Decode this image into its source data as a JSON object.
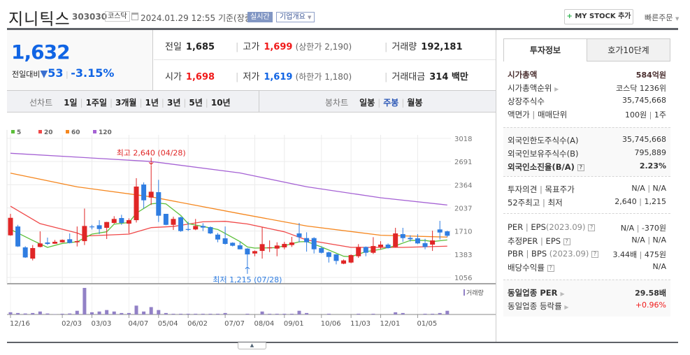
{
  "header": {
    "name": "지니틱스",
    "code": "303030",
    "market": "코스닥",
    "datetime": "2024.01.29 12:55",
    "basis": "기준(장중)",
    "realtime": "실시간",
    "corp_overview": "기업개요",
    "mystock": "MY STOCK 추가",
    "quick_order": "빠른주문"
  },
  "price": {
    "current": "1,632",
    "change_label": "전일대비",
    "change": "53",
    "change_pct": "-3.15%",
    "direction": "down",
    "prev_label": "전일",
    "prev": "1,685",
    "high_label": "고가",
    "high": "1,699",
    "upper_limit": "(상한가 2,190)",
    "volume_label": "거래량",
    "volume": "192,181",
    "open_label": "시가",
    "open": "1,698",
    "low_label": "저가",
    "low": "1,619",
    "lower_limit": "(하한가 1,180)",
    "amount_label": "거래대금",
    "amount": "314 백만"
  },
  "chart_tabs": {
    "line_label": "선차트",
    "line": [
      "1일",
      "1주일",
      "3개월",
      "1년",
      "3년",
      "5년",
      "10년"
    ],
    "candle_label": "봉차트",
    "candle": [
      "일봉",
      "주봉",
      "월봉"
    ],
    "candle_active": "주봉"
  },
  "right": {
    "tabs": [
      "투자정보",
      "호가10단계"
    ],
    "active_tab": "투자정보",
    "market_cap_label": "시가총액",
    "market_cap": "584억원",
    "rank_label": "시가총액순위",
    "rank": "코스닥 1236위",
    "shares_label": "상장주식수",
    "shares": "35,745,668",
    "par_label": "액면가",
    "unit_label": "매매단위",
    "par": "100원",
    "unit": "1주",
    "foreign_limit_label": "외국인한도주식수(A)",
    "foreign_limit": "35,745,668",
    "foreign_hold_label": "외국인보유주식수(B)",
    "foreign_hold": "795,889",
    "foreign_ratio_label": "외국인소진율(B/A)",
    "foreign_ratio": "2.23%",
    "opinion_label": "투자의견",
    "target_label": "목표주가",
    "opinion": "N/A",
    "target": "N/A",
    "w52_high_label": "52주최고",
    "w52_low_label": "최저",
    "w52_high": "2,640",
    "w52_low": "1,215",
    "per_label": "PER",
    "eps_label": "EPS",
    "eps_period": "(2023.09)",
    "per": "N/A",
    "eps": "-370원",
    "est_per_label": "추정PER",
    "est_eps_label": "EPS",
    "est_per": "N/A",
    "est_eps": "N/A",
    "pbr_label": "PBR",
    "bps_label": "BPS",
    "bps_period": "(2023.09)",
    "pbr": "3.44배",
    "bps": "475원",
    "div_label": "배당수익률",
    "div": "N/A",
    "ind_per_label": "동일업종 PER",
    "ind_per": "29.58배",
    "ind_chg_label": "동일업종 등락률",
    "ind_chg": "+0.96%"
  },
  "chart_data": {
    "type": "candlestick",
    "period": "weekly",
    "y_ticks": [
      3018,
      2691,
      2364,
      2037,
      1710,
      1383,
      1056
    ],
    "ylim": [
      1056,
      3018
    ],
    "x_ticks": [
      {
        "i": 0,
        "label": "12/16"
      },
      {
        "i": 7,
        "label": "02/03"
      },
      {
        "i": 11,
        "label": "03/03"
      },
      {
        "i": 16,
        "label": "04/07"
      },
      {
        "i": 20,
        "label": "05/04"
      },
      {
        "i": 24,
        "label": "06/02"
      },
      {
        "i": 29,
        "label": "07/07"
      },
      {
        "i": 33,
        "label": "08/04"
      },
      {
        "i": 37,
        "label": "09/01"
      },
      {
        "i": 42,
        "label": "10/06"
      },
      {
        "i": 46,
        "label": "11/03"
      },
      {
        "i": 50,
        "label": "12/01"
      },
      {
        "i": 55,
        "label": "01/05"
      }
    ],
    "legend": [
      {
        "name": "5",
        "color": "#5cbf3a"
      },
      {
        "name": "20",
        "color": "#f04848"
      },
      {
        "name": "60",
        "color": "#f5871f"
      },
      {
        "name": "120",
        "color": "#a562d4"
      }
    ],
    "up_color": "#e02626",
    "down_color": "#2f7de1",
    "ohlc": [
      [
        1650,
        1953,
        1644,
        1897
      ],
      [
        1775,
        1798,
        1486,
        1493
      ],
      [
        1480,
        1496,
        1332,
        1338
      ],
      [
        1322,
        1513,
        1296,
        1470
      ],
      [
        1486,
        1706,
        1480,
        1536
      ],
      [
        1549,
        1618,
        1513,
        1529
      ],
      [
        1532,
        1585,
        1529,
        1559
      ],
      [
        1552,
        1592,
        1549,
        1585
      ],
      [
        1595,
        1677,
        1536,
        1542
      ],
      [
        1552,
        1775,
        1493,
        1568
      ],
      [
        1568,
        2028,
        1513,
        1782
      ],
      [
        1775,
        1798,
        1733,
        1769
      ],
      [
        1792,
        1864,
        1667,
        1739
      ],
      [
        1756,
        1841,
        1598,
        1838
      ],
      [
        1825,
        1920,
        1815,
        1881
      ],
      [
        1894,
        1940,
        1798,
        1825
      ],
      [
        1815,
        1890,
        1677,
        1864
      ],
      [
        1864,
        2456,
        1831,
        2338
      ],
      [
        2367,
        2397,
        2028,
        2144
      ],
      [
        2183,
        2640,
        2078,
        2265
      ],
      [
        2259,
        2433,
        1838,
        1927
      ],
      [
        1953,
        1953,
        1792,
        1798
      ],
      [
        1798,
        1913,
        1726,
        1881
      ],
      [
        1904,
        1913,
        1700,
        1710
      ],
      [
        1739,
        1841,
        1710,
        1736
      ],
      [
        1733,
        1881,
        1723,
        1782
      ],
      [
        1782,
        1821,
        1710,
        1759
      ],
      [
        1766,
        1775,
        1667,
        1677
      ],
      [
        1660,
        1683,
        1552,
        1591
      ],
      [
        1608,
        1775,
        1519,
        1529
      ],
      [
        1545,
        1552,
        1493,
        1503
      ],
      [
        1509,
        1558,
        1453,
        1453
      ],
      [
        1463,
        1470,
        1215,
        1381
      ],
      [
        1394,
        1437,
        1355,
        1427
      ],
      [
        1430,
        1766,
        1322,
        1526
      ],
      [
        1473,
        1578,
        1414,
        1480
      ],
      [
        1463,
        1552,
        1355,
        1506
      ],
      [
        1480,
        1558,
        1453,
        1529
      ],
      [
        1513,
        1628,
        1486,
        1549
      ],
      [
        1677,
        1825,
        1552,
        1624
      ],
      [
        1611,
        1693,
        1420,
        1552
      ],
      [
        1611,
        1624,
        1394,
        1453
      ],
      [
        1470,
        1496,
        1394,
        1404
      ],
      [
        1410,
        1420,
        1266,
        1345
      ],
      [
        1381,
        1387,
        1240,
        1289
      ],
      [
        1250,
        1309,
        1243,
        1296
      ],
      [
        1266,
        1381,
        1256,
        1371
      ],
      [
        1355,
        1526,
        1332,
        1486
      ],
      [
        1486,
        1493,
        1355,
        1404
      ],
      [
        1404,
        1624,
        1387,
        1499
      ],
      [
        1486,
        1568,
        1453,
        1519
      ],
      [
        1519,
        1536,
        1463,
        1470
      ],
      [
        1486,
        1756,
        1480,
        1677
      ],
      [
        1667,
        1756,
        1558,
        1611
      ],
      [
        1614,
        1651,
        1562,
        1595
      ],
      [
        1608,
        1667,
        1526,
        1536
      ],
      [
        1539,
        1601,
        1453,
        1486
      ],
      [
        1519,
        1716,
        1430,
        1578
      ],
      [
        1733,
        1854,
        1591,
        1690
      ],
      [
        1706,
        1716,
        1624,
        1644
      ]
    ],
    "ma": {
      "5": [
        [
          0,
          1733
        ],
        [
          1,
          1683
        ],
        [
          3,
          1578
        ],
        [
          5,
          1480
        ],
        [
          7,
          1536
        ],
        [
          9,
          1559
        ],
        [
          11,
          1667
        ],
        [
          13,
          1700
        ],
        [
          14,
          1808
        ],
        [
          16,
          1831
        ],
        [
          17,
          1963
        ],
        [
          19,
          2094
        ],
        [
          20,
          2104
        ],
        [
          21,
          2094
        ],
        [
          23,
          1930
        ],
        [
          24,
          1815
        ],
        [
          26,
          1775
        ],
        [
          28,
          1733
        ],
        [
          29,
          1677
        ],
        [
          31,
          1562
        ],
        [
          32,
          1486
        ],
        [
          33,
          1470
        ],
        [
          36,
          1476
        ],
        [
          39,
          1559
        ],
        [
          40,
          1562
        ],
        [
          42,
          1486
        ],
        [
          45,
          1355
        ],
        [
          46,
          1348
        ],
        [
          48,
          1420
        ],
        [
          50,
          1453
        ],
        [
          52,
          1503
        ],
        [
          54,
          1578
        ],
        [
          56,
          1578
        ],
        [
          57,
          1562
        ],
        [
          59,
          1585
        ]
      ],
      "20": [
        [
          0,
          2061
        ],
        [
          4,
          1815
        ],
        [
          9,
          1683
        ],
        [
          10,
          1640
        ],
        [
          16,
          1667
        ],
        [
          19,
          1759
        ],
        [
          22,
          1775
        ],
        [
          26,
          1841
        ],
        [
          29,
          1848
        ],
        [
          32,
          1810
        ],
        [
          37,
          1700
        ],
        [
          40,
          1585
        ],
        [
          46,
          1480
        ],
        [
          53,
          1480
        ],
        [
          59,
          1497
        ]
      ],
      "60": [
        [
          0,
          2528
        ],
        [
          9,
          2334
        ],
        [
          19,
          2193
        ],
        [
          31,
          1955
        ],
        [
          40,
          1782
        ],
        [
          50,
          1651
        ],
        [
          59,
          1625
        ]
      ],
      "120": [
        [
          0,
          2808
        ],
        [
          19,
          2692
        ],
        [
          31,
          2530
        ],
        [
          40,
          2335
        ],
        [
          50,
          2180
        ],
        [
          59,
          2078
        ]
      ]
    },
    "high_annotation": {
      "i": 19,
      "text": "최고 2,640 (04/28)"
    },
    "low_annotation": {
      "i": 32,
      "text": "최저 1,215 (07/28)"
    },
    "volume_label": "거래량",
    "volume_color": "#9281c6",
    "volume_relative": [
      9,
      6,
      4,
      6,
      12,
      4,
      1,
      3,
      4,
      15,
      108,
      9,
      12,
      18,
      12,
      6,
      6,
      36,
      12,
      30,
      18,
      6,
      3,
      3,
      3,
      3,
      3,
      3,
      3,
      6,
      0,
      0,
      3,
      0,
      12,
      3,
      3,
      3,
      3,
      15,
      6,
      0,
      0,
      3,
      0,
      0,
      0,
      3,
      0,
      3,
      0,
      0,
      9,
      6,
      0,
      0,
      3,
      3,
      6,
      15
    ]
  }
}
